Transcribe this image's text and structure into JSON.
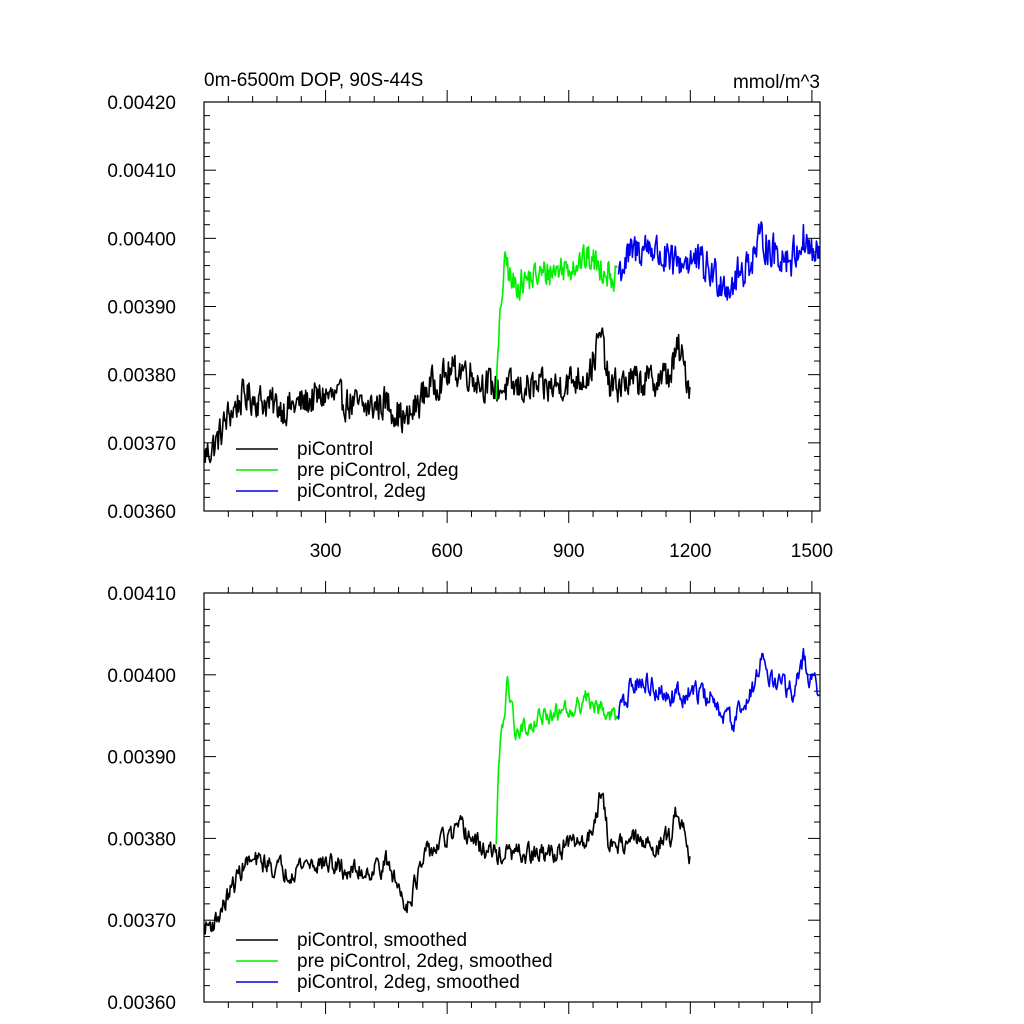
{
  "chart_data": [
    {
      "type": "line",
      "title": "0m-6500m DOP, 90S-44S",
      "units": "mmol/m^3",
      "xlabel": "",
      "ylabel": "",
      "xlim": [
        0,
        1520
      ],
      "ylim": [
        0.0036,
        0.0042
      ],
      "x_ticks": [
        300,
        600,
        900,
        1200,
        1500
      ],
      "x_tick_labels": [
        "300",
        "600",
        "900",
        "1200",
        "1500"
      ],
      "y_ticks": [
        0.0036,
        0.0037,
        0.0038,
        0.0039,
        0.004,
        0.0041,
        0.0042
      ],
      "y_tick_labels": [
        "0.00360",
        "0.00370",
        "0.00380",
        "0.00390",
        "0.00400",
        "0.00410",
        "0.00420"
      ],
      "legend_position": "bottom-left",
      "smoothed": false,
      "series": [
        {
          "name": "piControl",
          "color": "#000000",
          "x_range": [
            1,
            1200
          ],
          "anchors_x": [
            0,
            30,
            60,
            100,
            150,
            200,
            250,
            300,
            350,
            400,
            450,
            500,
            550,
            600,
            640,
            680,
            720,
            760,
            800,
            850,
            900,
            950,
            980,
            1000,
            1050,
            1100,
            1150,
            1170,
            1200
          ],
          "anchors_y": [
            0.00368,
            0.0037,
            0.00374,
            0.00377,
            0.00376,
            0.00375,
            0.00376,
            0.00377,
            0.00376,
            0.00375,
            0.00376,
            0.00373,
            0.00378,
            0.0038,
            0.00381,
            0.00379,
            0.00378,
            0.00378,
            0.00378,
            0.00378,
            0.00379,
            0.0038,
            0.00386,
            0.00378,
            0.00379,
            0.00379,
            0.0038,
            0.00384,
            0.00378
          ],
          "noise_amplitude": 2.5e-05
        },
        {
          "name": "pre piControl, 2deg",
          "color": "#00ee00",
          "x_range": [
            721,
            1020
          ],
          "anchors_x": [
            721,
            727,
            735,
            745,
            760,
            800,
            850,
            900,
            950,
            1000,
            1020
          ],
          "anchors_y": [
            0.00378,
            0.00384,
            0.00392,
            0.00397,
            0.00393,
            0.00394,
            0.00395,
            0.00396,
            0.00397,
            0.00395,
            0.00394
          ],
          "noise_amplitude": 2.2e-05
        },
        {
          "name": "piControl, 2deg",
          "color": "#0000ee",
          "x_range": [
            1021,
            1520
          ],
          "anchors_x": [
            1021,
            1060,
            1100,
            1150,
            1200,
            1250,
            1300,
            1350,
            1380,
            1400,
            1450,
            1480,
            1500,
            1520
          ],
          "anchors_y": [
            0.00395,
            0.00398,
            0.00399,
            0.00396,
            0.00397,
            0.00395,
            0.00393,
            0.00397,
            0.004,
            0.00398,
            0.00397,
            0.004,
            0.00398,
            0.00397
          ],
          "noise_amplitude": 2.8e-05
        }
      ]
    },
    {
      "type": "line",
      "title": "",
      "xlabel": "",
      "ylabel": "",
      "xlim": [
        0,
        1520
      ],
      "ylim": [
        0.0036,
        0.0041
      ],
      "x_ticks": [
        300,
        600,
        900,
        1200,
        1500
      ],
      "x_tick_labels": [],
      "y_ticks": [
        0.0036,
        0.0037,
        0.0038,
        0.0039,
        0.004,
        0.0041
      ],
      "y_tick_labels": [
        "0.00360",
        "0.00370",
        "0.00380",
        "0.00390",
        "0.00400",
        "0.00410"
      ],
      "legend_position": "bottom-left",
      "smoothed": true,
      "series": [
        {
          "name": "piControl, smoothed",
          "color": "#000000",
          "x_range": [
            1,
            1200
          ],
          "anchors_x": [
            0,
            30,
            60,
            100,
            150,
            200,
            250,
            300,
            350,
            400,
            450,
            500,
            550,
            600,
            640,
            680,
            720,
            760,
            800,
            850,
            900,
            950,
            980,
            1000,
            1050,
            1100,
            1150,
            1170,
            1200
          ],
          "anchors_y": [
            0.00369,
            0.0037,
            0.00373,
            0.00377,
            0.00377,
            0.00376,
            0.00377,
            0.00377,
            0.00376,
            0.00376,
            0.00377,
            0.00372,
            0.00378,
            0.0038,
            0.00381,
            0.00379,
            0.00378,
            0.00378,
            0.00378,
            0.00378,
            0.00379,
            0.0038,
            0.00386,
            0.00379,
            0.0038,
            0.00379,
            0.0038,
            0.00384,
            0.00378
          ],
          "noise_amplitude": 1.5e-05
        },
        {
          "name": "pre piControl, 2deg, smoothed",
          "color": "#00ee00",
          "x_range": [
            721,
            1020
          ],
          "anchors_x": [
            721,
            727,
            735,
            748,
            770,
            800,
            850,
            900,
            950,
            1000,
            1020
          ],
          "anchors_y": [
            0.0038,
            0.00388,
            0.00393,
            0.00399,
            0.00393,
            0.00394,
            0.00395,
            0.00396,
            0.00397,
            0.00395,
            0.00395
          ],
          "noise_amplitude": 1.3e-05
        },
        {
          "name": "piControl, 2deg, smoothed",
          "color": "#0000ee",
          "x_range": [
            1021,
            1520
          ],
          "anchors_x": [
            1021,
            1060,
            1100,
            1150,
            1200,
            1250,
            1300,
            1350,
            1380,
            1400,
            1450,
            1480,
            1500,
            1520
          ],
          "anchors_y": [
            0.00395,
            0.00399,
            0.00399,
            0.00397,
            0.00398,
            0.00397,
            0.00394,
            0.00398,
            0.00402,
            0.00399,
            0.00398,
            0.00402,
            0.00399,
            0.00398
          ],
          "noise_amplitude": 1.6e-05
        }
      ]
    }
  ]
}
